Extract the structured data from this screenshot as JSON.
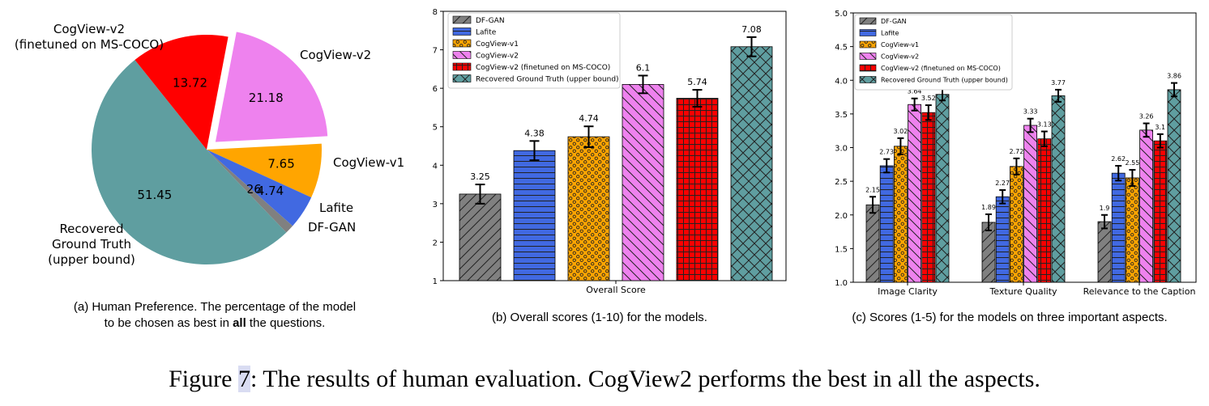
{
  "chart_data": [
    {
      "type": "pie",
      "slices": [
        {
          "label": "CogView-v2",
          "value": 21.18,
          "color": "#ee82ee",
          "exploded": true
        },
        {
          "label": "CogView-v1",
          "value": 7.65,
          "color": "#ffa500"
        },
        {
          "label": "Lafite",
          "value": 4.74,
          "color": "#4169e1"
        },
        {
          "label": "DF-GAN",
          "value": 1.26,
          "color": "#808080"
        },
        {
          "label": "Recovered Ground Truth (upper bound)",
          "value": 51.45,
          "color": "#5f9ea0"
        },
        {
          "label": "CogView-v2 (finetuned on MS-COCO)",
          "value": 13.72,
          "color": "#ff0000"
        }
      ],
      "labels_outside": {
        "cogview_v2": [
          "CogView-v2"
        ],
        "cogview_v1": [
          "CogView-v1"
        ],
        "lafite": [
          "Lafite"
        ],
        "dfgan": [
          "DF-GAN"
        ],
        "gt": [
          "Recovered",
          "Ground Truth",
          "(upper bound)"
        ],
        "ft": [
          "CogView-v2",
          "(finetuned on MS-COCO)"
        ]
      },
      "caption_lines": [
        "(a) Human Preference. The percentage of the model",
        "to be chosen as best in ",
        "all",
        " the questions."
      ]
    },
    {
      "type": "bar",
      "categories": [
        "Overall Score"
      ],
      "series": [
        {
          "name": "DF-GAN",
          "values": [
            3.25
          ],
          "err": [
            0.25
          ],
          "color": "#808080",
          "pattern": "diag"
        },
        {
          "name": "Lafite",
          "values": [
            4.38
          ],
          "err": [
            0.25
          ],
          "color": "#4169e1",
          "pattern": "hlines"
        },
        {
          "name": "CogView-v1",
          "values": [
            4.74
          ],
          "err": [
            0.27
          ],
          "color": "#ffa500",
          "pattern": "dots"
        },
        {
          "name": "CogView-v2",
          "values": [
            6.1
          ],
          "err": [
            0.23
          ],
          "color": "#ee82ee",
          "pattern": "backdiag"
        },
        {
          "name": "CogView-v2 (finetuned on MS-COCO)",
          "values": [
            5.74
          ],
          "err": [
            0.22
          ],
          "color": "#ff0000",
          "pattern": "grid"
        },
        {
          "name": "Recovered Ground Truth (upper bound)",
          "values": [
            7.08
          ],
          "err": [
            0.25
          ],
          "color": "#5f9ea0",
          "pattern": "cross"
        }
      ],
      "ylim": [
        1,
        8
      ],
      "yticks": [
        "1",
        "2",
        "3",
        "4",
        "5",
        "6",
        "7",
        "8"
      ],
      "legend": "top-left",
      "caption": "(b) Overall scores (1-10) for the models."
    },
    {
      "type": "bar",
      "categories": [
        "Image Clarity",
        "Texture Quality",
        "Relevance to the Caption"
      ],
      "series": [
        {
          "name": "DF-GAN",
          "values": [
            2.15,
            1.89,
            1.9
          ],
          "err": [
            0.12,
            0.12,
            0.1
          ],
          "color": "#808080",
          "pattern": "diag"
        },
        {
          "name": "Lafite",
          "values": [
            2.73,
            2.27,
            2.62
          ],
          "err": [
            0.1,
            0.1,
            0.11
          ],
          "color": "#4169e1",
          "pattern": "hlines"
        },
        {
          "name": "CogView-v1",
          "values": [
            3.02,
            2.72,
            2.55
          ],
          "err": [
            0.12,
            0.12,
            0.12
          ],
          "color": "#ffa500",
          "pattern": "dots"
        },
        {
          "name": "CogView-v2",
          "values": [
            3.64,
            3.33,
            3.26
          ],
          "err": [
            0.09,
            0.1,
            0.1
          ],
          "color": "#ee82ee",
          "pattern": "backdiag"
        },
        {
          "name": "CogView-v2 (finetuned on MS-COCO)",
          "values": [
            3.52,
            3.13,
            3.1
          ],
          "err": [
            0.11,
            0.11,
            0.1
          ],
          "color": "#ff0000",
          "pattern": "grid"
        },
        {
          "name": "Recovered Ground Truth (upper bound)",
          "values": [
            3.79,
            3.77,
            3.86
          ],
          "err": [
            0.09,
            0.09,
            0.1
          ],
          "color": "#5f9ea0",
          "pattern": "cross"
        }
      ],
      "ylim": [
        1,
        5
      ],
      "yticks": [
        "1.0",
        "1.5",
        "2.0",
        "2.5",
        "3.0",
        "3.5",
        "4.0",
        "4.5",
        "5.0"
      ],
      "legend": "top-left",
      "caption": "(c) Scores (1-5) for the models on three important aspects."
    }
  ],
  "figure_caption": {
    "prefix": "Figure ",
    "ref": "7",
    "text": ": The results of human evaluation. CogView2 performs the best in all the aspects."
  }
}
